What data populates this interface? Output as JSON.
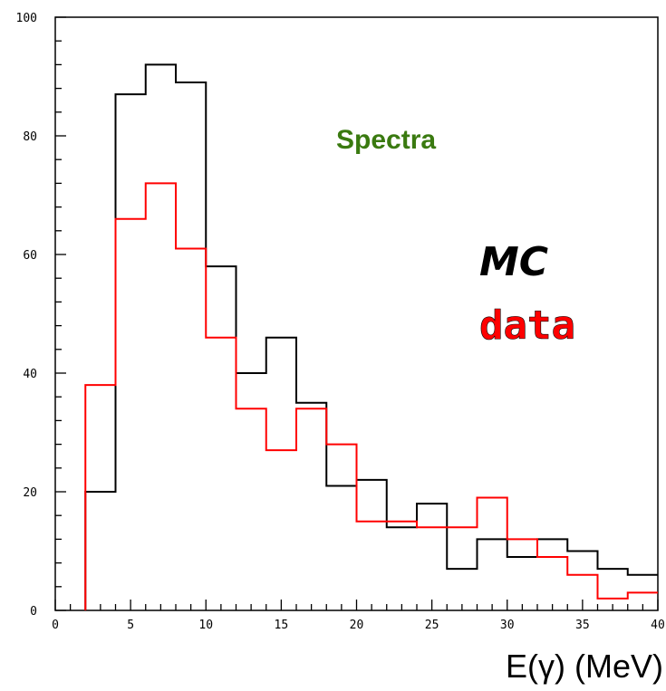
{
  "chart_data": {
    "type": "step",
    "title": "",
    "xlabel": "E(γ) (MeV)",
    "ylabel": "",
    "xlim": [
      0,
      40
    ],
    "ylim": [
      0,
      100
    ],
    "x_ticks": [
      0,
      5,
      10,
      15,
      20,
      25,
      30,
      35,
      40
    ],
    "y_ticks": [
      0,
      20,
      40,
      60,
      80,
      100
    ],
    "grid": false,
    "bin_edges": [
      2,
      4,
      6,
      8,
      10,
      12,
      14,
      16,
      18,
      20,
      22,
      24,
      26,
      28,
      30,
      32,
      34,
      36,
      38,
      40
    ],
    "series": [
      {
        "name": "MC",
        "color": "#000000",
        "values": [
          20,
          87,
          92,
          89,
          58,
          40,
          46,
          35,
          21,
          22,
          14,
          18,
          7,
          12,
          9,
          12,
          10,
          7,
          6
        ]
      },
      {
        "name": "data",
        "color": "#ff0000",
        "values": [
          38,
          66,
          72,
          61,
          46,
          34,
          27,
          34,
          28,
          15,
          15,
          14,
          14,
          19,
          12,
          9,
          6,
          2,
          3
        ]
      }
    ],
    "annotations": [
      "Spectra",
      "MC",
      "data"
    ],
    "annotation_colors": {
      "Spectra": "#3a7a10",
      "MC": "#000000",
      "data": "#ff0000"
    }
  }
}
